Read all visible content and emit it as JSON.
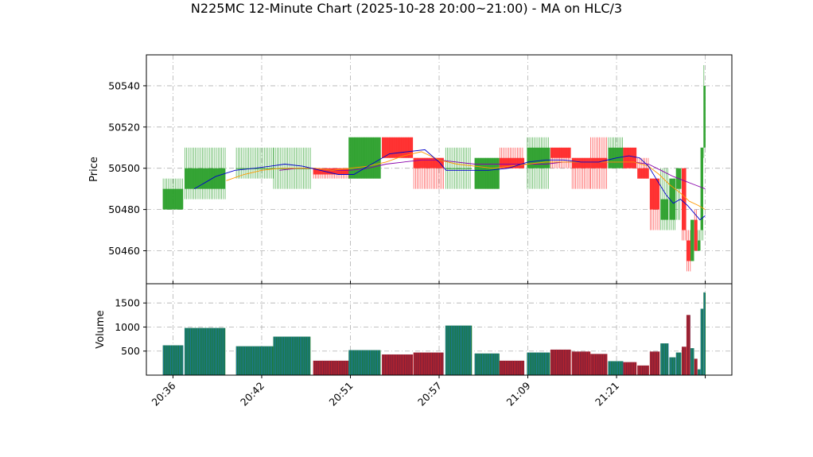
{
  "chart_data": {
    "type": "candlestick",
    "title": "N225MC 12-Minute Chart (2025-10-28 20:00~21:00) - MA on HLC/3",
    "price_panel": {
      "ylabel": "Price",
      "ylim": [
        50444,
        50555
      ],
      "yticks": [
        50460,
        50480,
        50500,
        50520,
        50540
      ],
      "ytick_labels": [
        "50460",
        "50480",
        "50500",
        "50520",
        "50540"
      ]
    },
    "volume_panel": {
      "ylabel": "Volume",
      "ylim": [
        0,
        1900
      ],
      "yticks": [
        500,
        1000,
        1500
      ],
      "ytick_labels": [
        "500",
        "1000",
        "1500"
      ]
    },
    "x_range": [
      -1.5,
      31.5
    ],
    "xticks": [
      0,
      5,
      10,
      15,
      20,
      25,
      30
    ],
    "xtick_labels": [
      "20:36",
      "20:42",
      "20:51",
      "20:57",
      "21:09",
      "21:21",
      ""
    ],
    "colors": {
      "up": "#2ca02c",
      "down": "#ff2a2a",
      "ma_fast": "#0000cc",
      "ma_mid": "#ff9900",
      "ma_slow": "#8800aa",
      "vol_up": "#1f77b4",
      "vol_down": "#d62728"
    },
    "candles": [
      {
        "x": 0,
        "w": 1.15,
        "open": 50480,
        "high": 50495,
        "low": 50480,
        "close": 50490,
        "volume": 620
      },
      {
        "x": 1.8,
        "w": 2.3,
        "open": 50490,
        "high": 50510,
        "low": 50485,
        "close": 50500,
        "volume": 980
      },
      {
        "x": 4.6,
        "w": 2.1,
        "open": 50500,
        "high": 50510,
        "low": 50495,
        "close": 50500,
        "volume": 600
      },
      {
        "x": 6.7,
        "w": 2.1,
        "open": 50500,
        "high": 50510,
        "low": 50490,
        "close": 50500,
        "volume": 800
      },
      {
        "x": 8.9,
        "w": 2.0,
        "open": 50500,
        "high": 50500,
        "low": 50495,
        "close": 50497,
        "volume": 300
      },
      {
        "x": 10.8,
        "w": 1.8,
        "open": 50495,
        "high": 50515,
        "low": 50495,
        "close": 50515,
        "volume": 520
      },
      {
        "x": 12.65,
        "w": 1.75,
        "open": 50515,
        "high": 50515,
        "low": 50505,
        "close": 50505,
        "volume": 430
      },
      {
        "x": 14.4,
        "w": 1.7,
        "open": 50505,
        "high": 50505,
        "low": 50490,
        "close": 50500,
        "volume": 470
      },
      {
        "x": 16.1,
        "w": 1.5,
        "open": 50500,
        "high": 50510,
        "low": 50490,
        "close": 50500,
        "volume": 1030
      },
      {
        "x": 17.7,
        "w": 1.4,
        "open": 50490,
        "high": 50505,
        "low": 50490,
        "close": 50505,
        "volume": 450
      },
      {
        "x": 19.1,
        "w": 1.4,
        "open": 50505,
        "high": 50510,
        "low": 50500,
        "close": 50500,
        "volume": 300
      },
      {
        "x": 20.6,
        "w": 1.3,
        "open": 50500,
        "high": 50515,
        "low": 50490,
        "close": 50510,
        "volume": 470
      },
      {
        "x": 21.85,
        "w": 1.15,
        "open": 50510,
        "high": 50510,
        "low": 50500,
        "close": 50505,
        "volume": 530
      },
      {
        "x": 23.0,
        "w": 1.05,
        "open": 50505,
        "high": 50505,
        "low": 50490,
        "close": 50500,
        "volume": 490
      },
      {
        "x": 24.0,
        "w": 0.95,
        "open": 50505,
        "high": 50515,
        "low": 50490,
        "close": 50500,
        "volume": 440
      },
      {
        "x": 24.95,
        "w": 0.85,
        "open": 50500,
        "high": 50515,
        "low": 50500,
        "close": 50510,
        "volume": 290
      },
      {
        "x": 25.75,
        "w": 0.75,
        "open": 50510,
        "high": 50510,
        "low": 50500,
        "close": 50500,
        "volume": 270
      },
      {
        "x": 26.5,
        "w": 0.65,
        "open": 50500,
        "high": 50505,
        "low": 50495,
        "close": 50495,
        "volume": 200
      },
      {
        "x": 27.15,
        "w": 0.55,
        "open": 50495,
        "high": 50495,
        "low": 50470,
        "close": 50480,
        "volume": 490
      },
      {
        "x": 27.7,
        "w": 0.45,
        "open": 50475,
        "high": 50500,
        "low": 50470,
        "close": 50485,
        "volume": 660
      },
      {
        "x": 28.15,
        "w": 0.35,
        "open": 50475,
        "high": 50495,
        "low": 50470,
        "close": 50495,
        "volume": 370
      },
      {
        "x": 28.5,
        "w": 0.3,
        "open": 50490,
        "high": 50500,
        "low": 50475,
        "close": 50500,
        "volume": 470
      },
      {
        "x": 28.8,
        "w": 0.25,
        "open": 50500,
        "high": 50500,
        "low": 50465,
        "close": 50470,
        "volume": 590
      },
      {
        "x": 29.05,
        "w": 0.22,
        "open": 50465,
        "high": 50470,
        "low": 50450,
        "close": 50455,
        "volume": 1250
      },
      {
        "x": 29.27,
        "w": 0.2,
        "open": 50455,
        "high": 50475,
        "low": 50455,
        "close": 50475,
        "volume": 560
      },
      {
        "x": 29.47,
        "w": 0.18,
        "open": 50475,
        "high": 50480,
        "low": 50460,
        "close": 50460,
        "volume": 340
      },
      {
        "x": 29.65,
        "w": 0.16,
        "open": 50460,
        "high": 50470,
        "low": 50460,
        "close": 50465,
        "volume": 120
      },
      {
        "x": 29.81,
        "w": 0.15,
        "open": 50470,
        "high": 50510,
        "low": 50465,
        "close": 50510,
        "volume": 1380
      },
      {
        "x": 29.96,
        "w": 0.12,
        "open": 50510,
        "high": 50550,
        "low": 50505,
        "close": 50540,
        "volume": 1720
      }
    ],
    "ma_fast": [
      [
        1.2,
        50490
      ],
      [
        2.4,
        50496
      ],
      [
        3.5,
        50499
      ],
      [
        4.6,
        50500
      ],
      [
        5.5,
        50501
      ],
      [
        6.3,
        50502
      ],
      [
        7.3,
        50501
      ],
      [
        8.3,
        50499
      ],
      [
        9.3,
        50497
      ],
      [
        10.2,
        50497
      ],
      [
        11.2,
        50502
      ],
      [
        12.2,
        50507
      ],
      [
        13.2,
        50508
      ],
      [
        14.2,
        50509
      ],
      [
        15.0,
        50503
      ],
      [
        15.4,
        50499
      ],
      [
        16.8,
        50499
      ],
      [
        17.8,
        50499
      ],
      [
        18.9,
        50500
      ],
      [
        20.0,
        50503
      ],
      [
        21.0,
        50504
      ],
      [
        22.0,
        50504
      ],
      [
        23.0,
        50503
      ],
      [
        24.0,
        50503
      ],
      [
        25.0,
        50505
      ],
      [
        25.7,
        50506
      ],
      [
        26.3,
        50505
      ],
      [
        26.8,
        50501
      ],
      [
        27.3,
        50494
      ],
      [
        27.8,
        50487
      ],
      [
        28.2,
        50483
      ],
      [
        28.6,
        50485
      ],
      [
        29.0,
        50482
      ],
      [
        29.4,
        50478
      ],
      [
        29.7,
        50475
      ],
      [
        30.0,
        50477
      ]
    ],
    "ma_mid": [
      [
        3.0,
        50494
      ],
      [
        4.0,
        50497
      ],
      [
        5.0,
        50499
      ],
      [
        6.0,
        50500
      ],
      [
        7.0,
        50500
      ],
      [
        8.0,
        50500
      ],
      [
        9.0,
        50499
      ],
      [
        10.0,
        50500
      ],
      [
        11.0,
        50501
      ],
      [
        12.0,
        50503
      ],
      [
        13.0,
        50506
      ],
      [
        14.0,
        50508
      ],
      [
        15.0,
        50504
      ],
      [
        16.0,
        50502
      ],
      [
        17.0,
        50501
      ],
      [
        18.0,
        50500
      ],
      [
        19.0,
        50501
      ],
      [
        20.0,
        50502
      ],
      [
        21.0,
        50503
      ],
      [
        22.0,
        50503
      ],
      [
        23.0,
        50503
      ],
      [
        24.0,
        50503
      ],
      [
        25.0,
        50503
      ],
      [
        26.0,
        50503
      ],
      [
        26.8,
        50501
      ],
      [
        27.4,
        50497
      ],
      [
        28.0,
        50492
      ],
      [
        28.6,
        50488
      ],
      [
        29.1,
        50484
      ],
      [
        29.6,
        50482
      ],
      [
        30.0,
        50480
      ]
    ],
    "ma_slow": [
      [
        6.0,
        50499
      ],
      [
        7.0,
        50500
      ],
      [
        8.0,
        50500
      ],
      [
        9.0,
        50499
      ],
      [
        10.0,
        50499
      ],
      [
        11.0,
        50500
      ],
      [
        12.0,
        50502
      ],
      [
        13.0,
        50503
      ],
      [
        14.0,
        50504
      ],
      [
        15.0,
        50504
      ],
      [
        16.0,
        50503
      ],
      [
        17.0,
        50502
      ],
      [
        18.0,
        50502
      ],
      [
        19.0,
        50502
      ],
      [
        20.0,
        50502
      ],
      [
        21.0,
        50502
      ],
      [
        22.0,
        50503
      ],
      [
        23.0,
        50503
      ],
      [
        24.0,
        50503
      ],
      [
        25.0,
        50503
      ],
      [
        26.0,
        50503
      ],
      [
        26.8,
        50502
      ],
      [
        27.5,
        50499
      ],
      [
        28.2,
        50496
      ],
      [
        28.8,
        50494
      ],
      [
        29.4,
        50492
      ],
      [
        30.0,
        50490
      ]
    ]
  }
}
